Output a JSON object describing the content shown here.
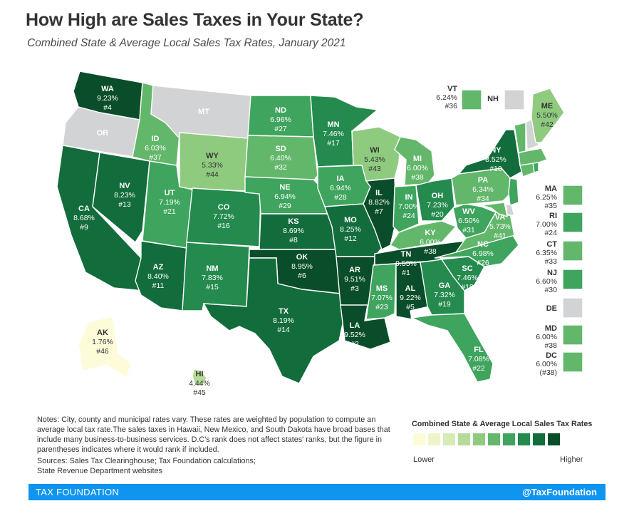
{
  "title": "How High are Sales Taxes in Your State?",
  "subtitle": "Combined State & Average Local Sales Tax Rates, January 2021",
  "colors": {
    "none": "#d2d3d4",
    "scale": [
      "#fdfbd8",
      "#eef5c8",
      "#d6ecb4",
      "#b4dc98",
      "#8fcb7f",
      "#62b76b",
      "#3fa45e",
      "#248a4e",
      "#136c3c",
      "#0a4d2a"
    ]
  },
  "states": [
    {
      "abbr": "WA",
      "rate": "9.23%",
      "rank": "#4"
    },
    {
      "abbr": "OR",
      "rate": "",
      "rank": ""
    },
    {
      "abbr": "CA",
      "rate": "8.68%",
      "rank": "#9"
    },
    {
      "abbr": "NV",
      "rate": "8.23%",
      "rank": "#13"
    },
    {
      "abbr": "ID",
      "rate": "6.03%",
      "rank": "#37"
    },
    {
      "abbr": "MT",
      "rate": "",
      "rank": ""
    },
    {
      "abbr": "WY",
      "rate": "5.33%",
      "rank": "#44"
    },
    {
      "abbr": "UT",
      "rate": "7.19%",
      "rank": "#21"
    },
    {
      "abbr": "AZ",
      "rate": "8.40%",
      "rank": "#11"
    },
    {
      "abbr": "CO",
      "rate": "7.72%",
      "rank": "#16"
    },
    {
      "abbr": "NM",
      "rate": "7.83%",
      "rank": "#15"
    },
    {
      "abbr": "ND",
      "rate": "6.96%",
      "rank": "#27"
    },
    {
      "abbr": "SD",
      "rate": "6.40%",
      "rank": "#32"
    },
    {
      "abbr": "NE",
      "rate": "6.94%",
      "rank": "#29"
    },
    {
      "abbr": "KS",
      "rate": "8.69%",
      "rank": "#8"
    },
    {
      "abbr": "OK",
      "rate": "8.95%",
      "rank": "#6"
    },
    {
      "abbr": "TX",
      "rate": "8.19%",
      "rank": "#14"
    },
    {
      "abbr": "MN",
      "rate": "7.46%",
      "rank": "#17"
    },
    {
      "abbr": "IA",
      "rate": "6.94%",
      "rank": "#28"
    },
    {
      "abbr": "MO",
      "rate": "8.25%",
      "rank": "#12"
    },
    {
      "abbr": "AR",
      "rate": "9.51%",
      "rank": "#3"
    },
    {
      "abbr": "LA",
      "rate": "9.52%",
      "rank": "#2"
    },
    {
      "abbr": "WI",
      "rate": "5.43%",
      "rank": "#43"
    },
    {
      "abbr": "IL",
      "rate": "8.82%",
      "rank": "#7"
    },
    {
      "abbr": "MI",
      "rate": "6.00%",
      "rank": "#38"
    },
    {
      "abbr": "IN",
      "rate": "7.00%",
      "rank": "#24"
    },
    {
      "abbr": "OH",
      "rate": "7.23%",
      "rank": "#20"
    },
    {
      "abbr": "KY",
      "rate": "6.00%",
      "rank": "#38"
    },
    {
      "abbr": "TN",
      "rate": "9.55%",
      "rank": "#1"
    },
    {
      "abbr": "MS",
      "rate": "7.07%",
      "rank": "#23"
    },
    {
      "abbr": "AL",
      "rate": "9.22%",
      "rank": "#5"
    },
    {
      "abbr": "GA",
      "rate": "7.32%",
      "rank": "#19"
    },
    {
      "abbr": "FL",
      "rate": "7.08%",
      "rank": "#22"
    },
    {
      "abbr": "SC",
      "rate": "7.46%",
      "rank": "#18"
    },
    {
      "abbr": "NC",
      "rate": "6.98%",
      "rank": "#26"
    },
    {
      "abbr": "VA",
      "rate": "5.73%",
      "rank": "#41"
    },
    {
      "abbr": "WV",
      "rate": "6.50%",
      "rank": "#31"
    },
    {
      "abbr": "PA",
      "rate": "6.34%",
      "rank": "#34"
    },
    {
      "abbr": "NY",
      "rate": "8.52%",
      "rank": "#10"
    },
    {
      "abbr": "ME",
      "rate": "5.50%",
      "rank": "#42"
    },
    {
      "abbr": "AK",
      "rate": "1.76%",
      "rank": "#46"
    },
    {
      "abbr": "HI",
      "rate": "4.44%",
      "rank": "#45"
    }
  ],
  "insets": [
    {
      "abbr": "VT",
      "rate": "6.24%",
      "rank": "#36"
    },
    {
      "abbr": "NH",
      "rate": "",
      "rank": ""
    },
    {
      "abbr": "MA",
      "rate": "6.25%",
      "rank": "#35"
    },
    {
      "abbr": "RI",
      "rate": "7.00%",
      "rank": "#24"
    },
    {
      "abbr": "CT",
      "rate": "6.35%",
      "rank": "#33"
    },
    {
      "abbr": "NJ",
      "rate": "6.60%",
      "rank": "#30"
    },
    {
      "abbr": "DE",
      "rate": "",
      "rank": ""
    },
    {
      "abbr": "MD",
      "rate": "6.00%",
      "rank": "#38"
    },
    {
      "abbr": "DC",
      "rate": "6.00%",
      "rank": "(#38)"
    }
  ],
  "notes": "Notes: City, county and municipal rates vary. These rates are weighted by population to compute an average local tax rate.The sales taxes in Hawaii, New Mexico, and South Dakota have broad bases that include many business-to-business services. D.C's rank does not affect states' ranks, but the figure in parentheses indicates where it would rank if included.",
  "sources_line1": "Sources: Sales Tax Clearinghouse; Tax Foundation calculations;",
  "sources_line2": "State Revenue Department websites",
  "legend": {
    "title": "Combined State & Average Local Sales Tax Rates",
    "low": "Lower",
    "high": "Higher"
  },
  "footer": {
    "left": "TAX FOUNDATION",
    "right": "@TaxFoundation"
  }
}
